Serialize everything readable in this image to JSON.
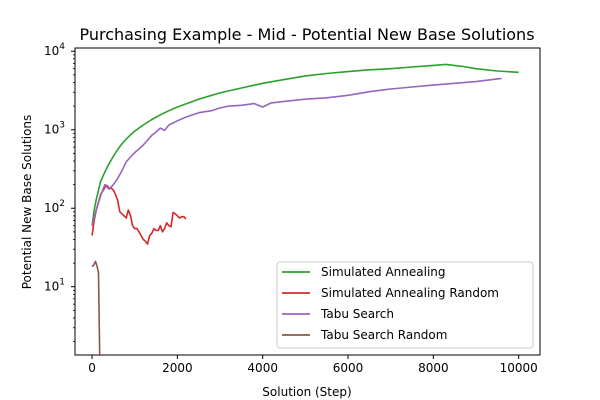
{
  "chart_data": {
    "type": "line",
    "title": "Purchasing Example - Mid - Potential New Base Solutions",
    "xlabel": "Solution (Step)",
    "ylabel": "Potential New Base Solutions",
    "xlim": [
      -400,
      10500
    ],
    "ylim": [
      1.35,
      11000
    ],
    "yscale": "log",
    "grid": false,
    "legend_position": "lower-right",
    "x_ticks": [
      0,
      2000,
      4000,
      6000,
      8000,
      10000
    ],
    "x_tick_labels": [
      "0",
      "2000",
      "4000",
      "6000",
      "8000",
      "10000"
    ],
    "y_ticks": [
      10,
      100,
      1000,
      10000
    ],
    "y_tick_bases": [
      "10",
      "10",
      "10",
      "10"
    ],
    "y_tick_exponents": [
      "1",
      "2",
      "3",
      "4"
    ],
    "series": [
      {
        "name": "Simulated Annealing",
        "color": "#2ca02c",
        "points": [
          [
            0,
            60
          ],
          [
            50,
            95
          ],
          [
            100,
            130
          ],
          [
            150,
            170
          ],
          [
            200,
            220
          ],
          [
            300,
            290
          ],
          [
            400,
            370
          ],
          [
            500,
            460
          ],
          [
            600,
            560
          ],
          [
            700,
            660
          ],
          [
            800,
            760
          ],
          [
            900,
            860
          ],
          [
            1000,
            960
          ],
          [
            1200,
            1150
          ],
          [
            1400,
            1350
          ],
          [
            1600,
            1550
          ],
          [
            1800,
            1750
          ],
          [
            2000,
            1950
          ],
          [
            2500,
            2450
          ],
          [
            3000,
            2950
          ],
          [
            3500,
            3400
          ],
          [
            4000,
            3900
          ],
          [
            4500,
            4350
          ],
          [
            5000,
            4850
          ],
          [
            5500,
            5200
          ],
          [
            6000,
            5500
          ],
          [
            6500,
            5800
          ],
          [
            7000,
            6000
          ],
          [
            7500,
            6300
          ],
          [
            8000,
            6600
          ],
          [
            8300,
            6800
          ],
          [
            8700,
            6400
          ],
          [
            9000,
            6000
          ],
          [
            9500,
            5600
          ],
          [
            10000,
            5400
          ]
        ]
      },
      {
        "name": "Simulated Annealing Random",
        "color": "#d62728",
        "points": [
          [
            0,
            45
          ],
          [
            50,
            70
          ],
          [
            100,
            95
          ],
          [
            150,
            120
          ],
          [
            200,
            150
          ],
          [
            250,
            165
          ],
          [
            300,
            185
          ],
          [
            350,
            195
          ],
          [
            400,
            180
          ],
          [
            450,
            180
          ],
          [
            500,
            170
          ],
          [
            550,
            150
          ],
          [
            600,
            125
          ],
          [
            650,
            90
          ],
          [
            700,
            85
          ],
          [
            750,
            80
          ],
          [
            800,
            75
          ],
          [
            850,
            95
          ],
          [
            900,
            80
          ],
          [
            950,
            60
          ],
          [
            1000,
            55
          ],
          [
            1050,
            55
          ],
          [
            1100,
            50
          ],
          [
            1150,
            45
          ],
          [
            1200,
            40
          ],
          [
            1250,
            38
          ],
          [
            1300,
            35
          ],
          [
            1350,
            45
          ],
          [
            1400,
            48
          ],
          [
            1450,
            55
          ],
          [
            1500,
            52
          ],
          [
            1550,
            52
          ],
          [
            1600,
            60
          ],
          [
            1650,
            50
          ],
          [
            1700,
            55
          ],
          [
            1750,
            65
          ],
          [
            1800,
            60
          ],
          [
            1850,
            58
          ],
          [
            1900,
            88
          ],
          [
            1950,
            85
          ],
          [
            2000,
            80
          ],
          [
            2050,
            75
          ],
          [
            2100,
            78
          ],
          [
            2150,
            78
          ],
          [
            2200,
            73
          ]
        ]
      },
      {
        "name": "Tabu Search",
        "color": "#9467bd",
        "points": [
          [
            0,
            60
          ],
          [
            100,
            95
          ],
          [
            200,
            145
          ],
          [
            300,
            200
          ],
          [
            400,
            175
          ],
          [
            500,
            200
          ],
          [
            600,
            240
          ],
          [
            700,
            300
          ],
          [
            800,
            390
          ],
          [
            900,
            450
          ],
          [
            1000,
            510
          ],
          [
            1200,
            640
          ],
          [
            1400,
            850
          ],
          [
            1500,
            940
          ],
          [
            1600,
            1050
          ],
          [
            1700,
            980
          ],
          [
            1800,
            1150
          ],
          [
            2000,
            1300
          ],
          [
            2200,
            1450
          ],
          [
            2500,
            1650
          ],
          [
            2800,
            1750
          ],
          [
            3000,
            1900
          ],
          [
            3200,
            2000
          ],
          [
            3500,
            2050
          ],
          [
            3800,
            2150
          ],
          [
            4000,
            1950
          ],
          [
            4200,
            2200
          ],
          [
            4500,
            2300
          ],
          [
            5000,
            2450
          ],
          [
            5500,
            2550
          ],
          [
            6000,
            2750
          ],
          [
            6500,
            3050
          ],
          [
            7000,
            3300
          ],
          [
            7500,
            3500
          ],
          [
            8000,
            3700
          ],
          [
            8500,
            3900
          ],
          [
            9000,
            4100
          ],
          [
            9500,
            4450
          ],
          [
            9600,
            4500
          ]
        ]
      },
      {
        "name": "Tabu Search Random",
        "color": "#8c564b",
        "points": [
          [
            0,
            18
          ],
          [
            40,
            19
          ],
          [
            80,
            21
          ],
          [
            120,
            18
          ],
          [
            150,
            15
          ],
          [
            180,
            1.35
          ]
        ]
      }
    ]
  }
}
